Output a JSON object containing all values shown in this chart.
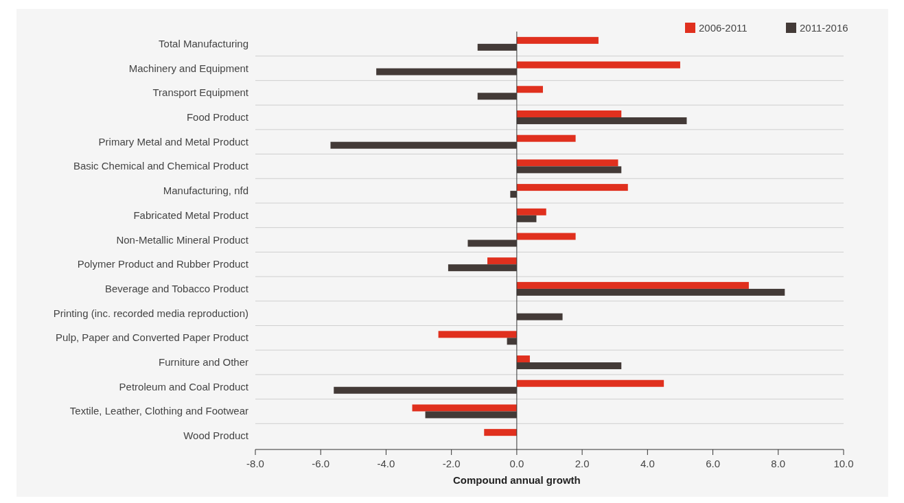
{
  "chart_data": {
    "type": "bar",
    "orientation": "horizontal",
    "xlabel": "Compound annual growth",
    "categories": [
      "Total Manufacturing",
      "Machinery and Equipment",
      "Transport Equipment",
      "Food Product",
      "Primary Metal and Metal Product",
      "Basic Chemical and Chemical Product",
      "Manufacturing, nfd",
      "Fabricated Metal Product",
      "Non-Metallic Mineral Product",
      "Polymer Product and Rubber Product",
      "Beverage and Tobacco Product",
      "Printing (inc. recorded media reproduction)",
      "Pulp, Paper and Converted Paper Product",
      "Furniture and Other",
      "Petroleum and Coal Product",
      "Textile, Leather, Clothing and Footwear",
      "Wood Product"
    ],
    "series": [
      {
        "name": "2006-2011",
        "color": "#e0301e",
        "values": [
          2.5,
          5.0,
          0.8,
          3.2,
          1.8,
          3.1,
          3.4,
          0.9,
          1.8,
          -0.9,
          7.1,
          null,
          -2.4,
          0.4,
          4.5,
          -3.2,
          -1.0
        ]
      },
      {
        "name": "2011-2016",
        "color": "#433a37",
        "values": [
          -1.2,
          -4.3,
          -1.2,
          5.2,
          -5.7,
          3.2,
          -0.2,
          0.6,
          -1.5,
          -2.1,
          8.2,
          1.4,
          -0.3,
          3.2,
          -5.6,
          -2.8,
          null
        ]
      }
    ],
    "xlim": [
      -8,
      10
    ],
    "xticks": [
      {
        "value": -8,
        "label": "-8.0"
      },
      {
        "value": -6,
        "label": "-6.0"
      },
      {
        "value": -4,
        "label": "-4.0"
      },
      {
        "value": -2,
        "label": "-2.0"
      },
      {
        "value": 0,
        "label": "0.0"
      },
      {
        "value": 2,
        "label": "2.0"
      },
      {
        "value": 4,
        "label": "4.0"
      },
      {
        "value": 6,
        "label": "6.0"
      },
      {
        "value": 8,
        "label": "8.0"
      },
      {
        "value": 10,
        "label": "10.0"
      }
    ],
    "grid": "y",
    "legend": "top right"
  }
}
